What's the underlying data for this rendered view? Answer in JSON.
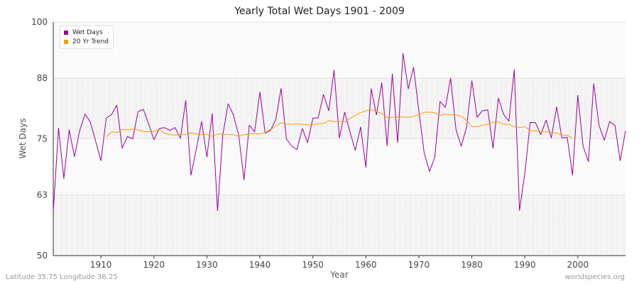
{
  "chart_data": {
    "type": "line",
    "title": "Yearly Total Wet Days 1901 - 2009",
    "xlabel": "Year",
    "ylabel": "Wet Days",
    "xlim": [
      1901,
      2009
    ],
    "ylim": [
      50,
      100
    ],
    "yticks": [
      50,
      63,
      75,
      88,
      100
    ],
    "xticks": [
      1910,
      1920,
      1930,
      1940,
      1950,
      1960,
      1970,
      1980,
      1990,
      2000
    ],
    "grid": true,
    "legend_position": "top-left",
    "series": [
      {
        "name": "Wet Days",
        "color": "#990099",
        "x": [
          1901,
          1902,
          1903,
          1904,
          1905,
          1906,
          1907,
          1908,
          1909,
          1910,
          1911,
          1912,
          1913,
          1914,
          1915,
          1916,
          1917,
          1918,
          1919,
          1920,
          1921,
          1922,
          1923,
          1924,
          1925,
          1926,
          1927,
          1928,
          1929,
          1930,
          1931,
          1932,
          1933,
          1934,
          1935,
          1936,
          1937,
          1938,
          1939,
          1940,
          1941,
          1942,
          1943,
          1944,
          1945,
          1946,
          1947,
          1948,
          1949,
          1950,
          1951,
          1952,
          1953,
          1954,
          1955,
          1956,
          1957,
          1958,
          1959,
          1960,
          1961,
          1962,
          1963,
          1964,
          1965,
          1966,
          1967,
          1968,
          1969,
          1970,
          1971,
          1972,
          1973,
          1974,
          1975,
          1976,
          1977,
          1978,
          1979,
          1980,
          1981,
          1982,
          1983,
          1984,
          1985,
          1986,
          1987,
          1988,
          1989,
          1990,
          1991,
          1992,
          1993,
          1994,
          1995,
          1996,
          1997,
          1998,
          1999,
          2000,
          2001,
          2002,
          2003,
          2004,
          2005,
          2006,
          2007,
          2008,
          2009
        ],
        "y": [
          59.5,
          77.3,
          66.5,
          76.9,
          71.2,
          76.8,
          80.3,
          78.6,
          74.5,
          70.3,
          79.4,
          80.2,
          82.2,
          73.0,
          75.5,
          75.0,
          80.8,
          81.3,
          78.2,
          74.8,
          77.2,
          77.4,
          76.8,
          77.4,
          75.1,
          83.2,
          67.2,
          72.8,
          78.7,
          71.1,
          80.4,
          59.6,
          75.8,
          82.5,
          80.1,
          75.8,
          66.2,
          77.9,
          76.5,
          85.0,
          76.2,
          76.8,
          79.1,
          85.8,
          75.0,
          73.4,
          72.7,
          77.2,
          74.2,
          79.4,
          79.5,
          84.5,
          81.0,
          89.7,
          75.2,
          80.7,
          76.5,
          72.5,
          77.5,
          68.9,
          85.7,
          80.1,
          87.0,
          73.5,
          88.9,
          74.2,
          93.3,
          85.7,
          90.3,
          81.0,
          72.0,
          68.0,
          71.0,
          83.0,
          81.7,
          88.0,
          77.0,
          73.4,
          77.5,
          87.4,
          79.6,
          81.0,
          81.2,
          73.0,
          83.7,
          80.2,
          78.8,
          89.8,
          59.7,
          67.6,
          78.5,
          78.5,
          75.9,
          79.0,
          75.2,
          81.8,
          75.2,
          75.3,
          67.2,
          84.3,
          73.4,
          70.1,
          86.8,
          77.9,
          74.7,
          78.7,
          77.9,
          70.3,
          76.7
        ]
      },
      {
        "name": "20 Yr Trend",
        "color": "#ff9900",
        "x": [
          1911,
          1912,
          1913,
          1914,
          1915,
          1916,
          1917,
          1918,
          1919,
          1920,
          1921,
          1922,
          1923,
          1924,
          1925,
          1926,
          1927,
          1928,
          1929,
          1930,
          1931,
          1932,
          1933,
          1934,
          1935,
          1936,
          1937,
          1938,
          1939,
          1940,
          1941,
          1942,
          1943,
          1944,
          1945,
          1946,
          1947,
          1948,
          1949,
          1950,
          1951,
          1952,
          1953,
          1954,
          1955,
          1956,
          1957,
          1958,
          1959,
          1960,
          1961,
          1962,
          1963,
          1964,
          1965,
          1966,
          1967,
          1968,
          1969,
          1970,
          1971,
          1972,
          1973,
          1974,
          1975,
          1976,
          1977,
          1978,
          1979,
          1980,
          1981,
          1982,
          1983,
          1984,
          1985,
          1986,
          1987,
          1988,
          1989,
          1990,
          1991,
          1992,
          1993,
          1994,
          1995,
          1996,
          1997,
          1998,
          1999
        ],
        "y": [
          75.4,
          76.5,
          76.3,
          77.0,
          76.9,
          77.1,
          76.9,
          76.6,
          76.5,
          76.6,
          77.0,
          76.2,
          75.9,
          75.8,
          75.9,
          75.9,
          76.3,
          76.0,
          75.9,
          76.0,
          75.5,
          76.0,
          76.0,
          75.9,
          75.9,
          75.5,
          75.9,
          76.0,
          76.1,
          76.0,
          76.3,
          77.0,
          77.7,
          78.4,
          78.2,
          78.1,
          78.2,
          78.1,
          78.0,
          78.0,
          78.2,
          78.3,
          78.9,
          78.7,
          78.7,
          78.6,
          79.4,
          80.0,
          80.6,
          81.0,
          81.2,
          80.8,
          80.4,
          79.6,
          79.6,
          79.7,
          79.7,
          79.6,
          79.8,
          80.2,
          80.7,
          80.7,
          80.6,
          80.0,
          80.3,
          80.1,
          80.2,
          79.8,
          79.0,
          77.6,
          77.6,
          77.9,
          78.1,
          78.6,
          78.6,
          78.1,
          78.1,
          77.6,
          77.4,
          77.6,
          76.8,
          76.7,
          76.5,
          76.5,
          76.4,
          76.2,
          75.7,
          75.8,
          75.1
        ]
      }
    ]
  },
  "footer": {
    "left": "Latitude 35.75 Longitude 36.25",
    "right": "worldspecies.org"
  }
}
